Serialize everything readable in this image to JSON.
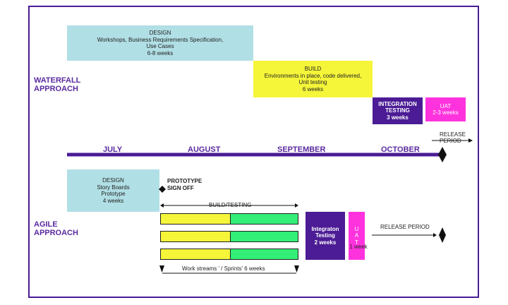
{
  "waterfall": {
    "label_line1": "WATERFALL",
    "label_line2": "APPROACH",
    "design": {
      "title": "DESIGN",
      "line1": "Workshops, Business Requirements Specification,",
      "line2": "Use Cases",
      "duration": "6-8 weeks",
      "color": "#b0dfe5"
    },
    "build": {
      "title": "BUILD",
      "line1": "Environments in place, code delivered,",
      "line2": "Unit testing",
      "duration": "6 weeks",
      "color": "#f5f53a"
    },
    "integration": {
      "title_line1": "INTEGRATION",
      "title_line2": "TESTING",
      "duration": "3 weeks",
      "color": "#4b1c95"
    },
    "uat": {
      "title": "UAT",
      "duration": "2-3 weeks",
      "color": "#ff33dd"
    },
    "release_line1": "RELEASE",
    "release_line2": "PERIOD"
  },
  "timeline": {
    "months": [
      "JULY",
      "AUGUST",
      "SEPTEMBER",
      "OCTOBER"
    ],
    "color": "#4b1c95"
  },
  "agile": {
    "label_line1": "AGILE",
    "label_line2": "APPROACH",
    "design": {
      "title": "DESIGN",
      "line1": "Story Boards",
      "line2": "Prototype",
      "duration": "4 weeks",
      "color": "#b0dfe5"
    },
    "prototype_signoff_line1": "PROTOTYPE",
    "prototype_signoff_line2": "SIGN OFF",
    "build_testing": "BUILD/TESTING",
    "sprint_colors": {
      "first": "#f5f53a",
      "second": "#33ee77"
    },
    "integration": {
      "line1": "Integraton",
      "line2": "Testing",
      "duration": "2 weeks",
      "color": "#4b1c95"
    },
    "uat": {
      "letters": [
        "U",
        "A",
        "T"
      ],
      "duration": "1 week",
      "color": "#ff33dd"
    },
    "release_period": "RELEASE PERIOD",
    "workstreams": "Work streams ' / Sprints' 6 weeks"
  }
}
